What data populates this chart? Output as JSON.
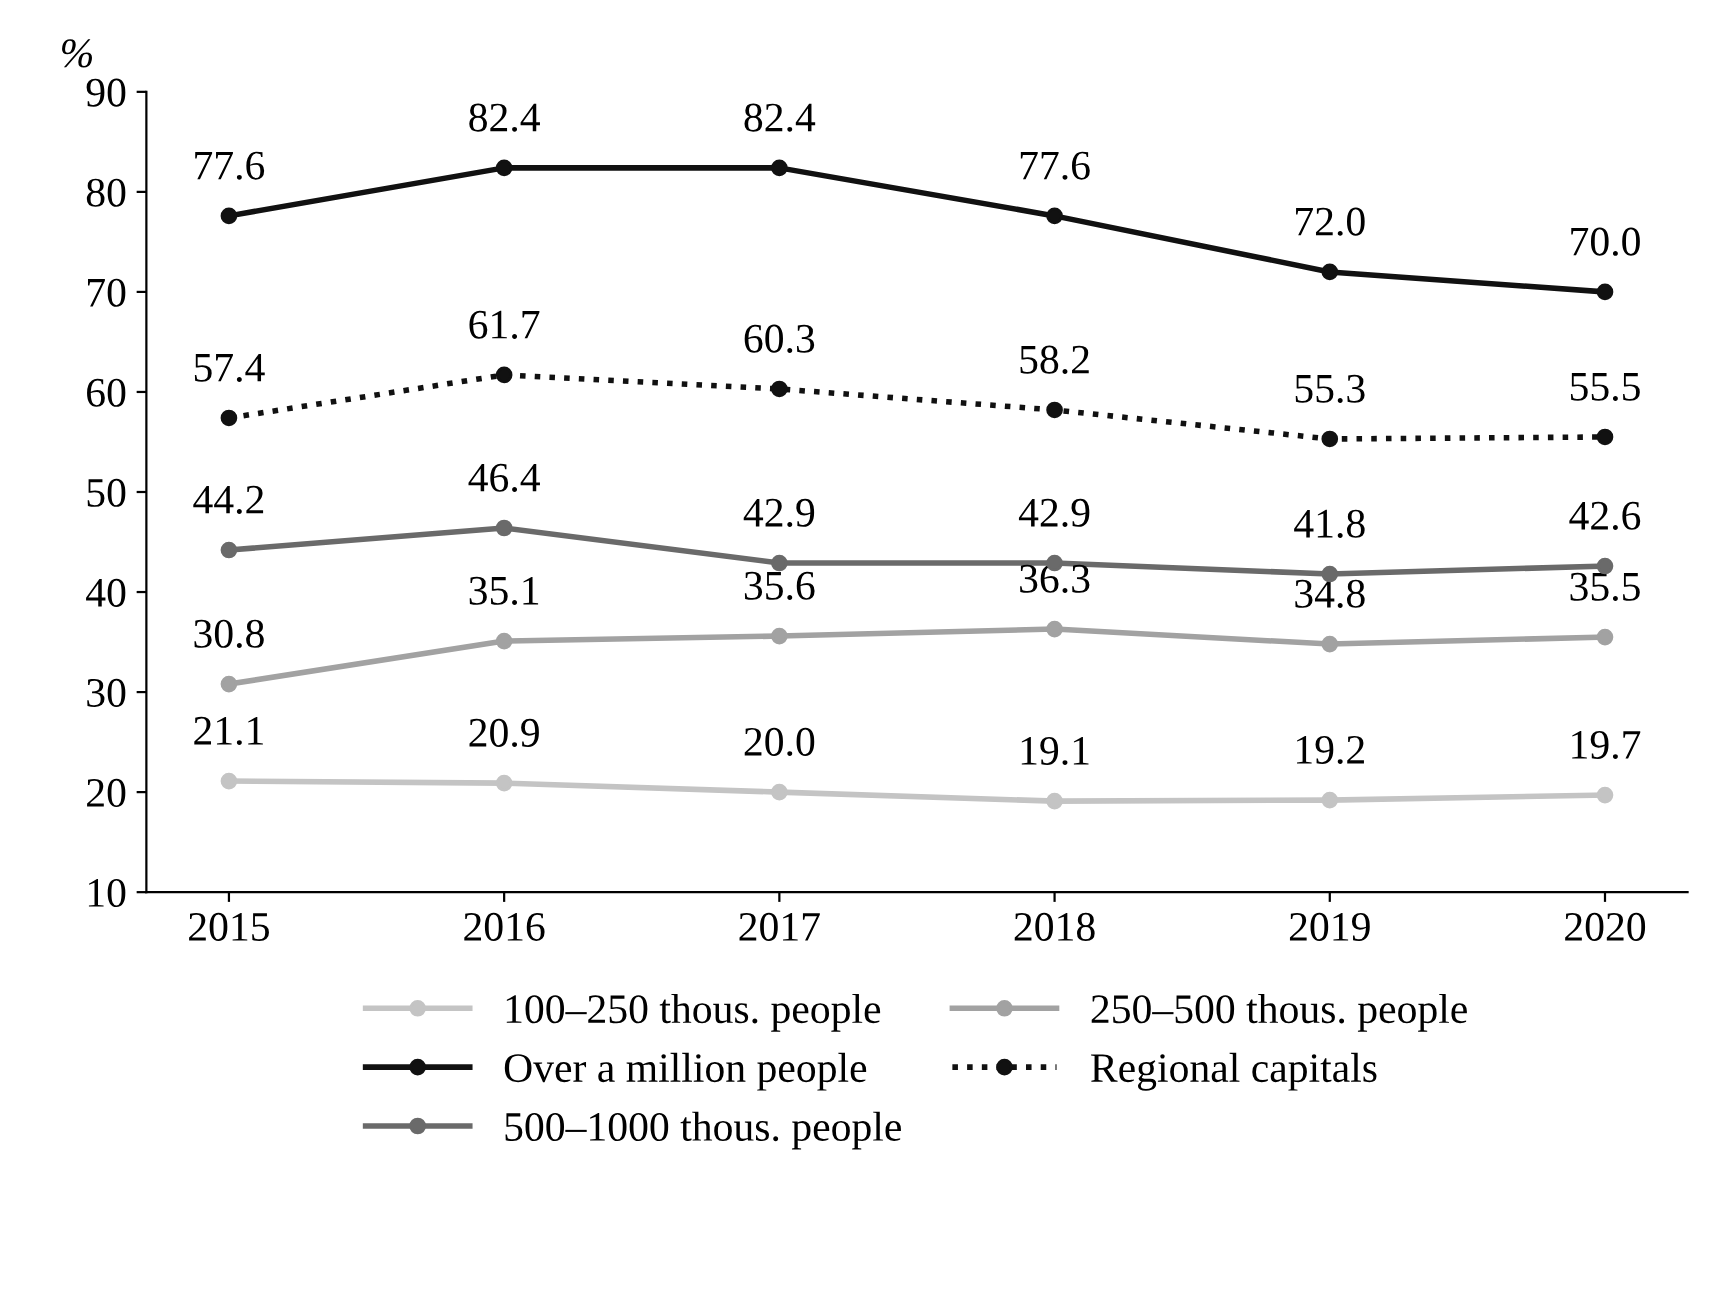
{
  "chart_data": {
    "type": "line",
    "ylabel": "%",
    "categories": [
      "2015",
      "2016",
      "2017",
      "2018",
      "2019",
      "2020"
    ],
    "series": [
      {
        "name": "100–250 thous. people",
        "color": "#c4c4c4",
        "values": [
          21.1,
          20.9,
          20.0,
          19.1,
          19.2,
          19.7
        ],
        "value_labels": [
          "21.1",
          "20.9",
          "20.0",
          "19.1",
          "19.2",
          "19.7"
        ]
      },
      {
        "name": "250–500 thous. people",
        "color": "#a2a2a2",
        "values": [
          30.8,
          35.1,
          35.6,
          36.3,
          34.8,
          35.5
        ],
        "value_labels": [
          "30.8",
          "35.1",
          "35.6",
          "36.3",
          "34.8",
          "35.5"
        ]
      },
      {
        "name": "Over a million people",
        "color": "#111111",
        "values": [
          77.6,
          82.4,
          82.4,
          77.6,
          72.0,
          70.0
        ],
        "value_labels": [
          "77.6",
          "82.4",
          "82.4",
          "77.6",
          "72.0",
          "70.0"
        ]
      },
      {
        "name": "Regional capitals",
        "color": "#111111",
        "line_style": "dotted",
        "values": [
          57.4,
          61.7,
          60.3,
          58.2,
          55.3,
          55.5
        ],
        "value_labels": [
          "57.4",
          "61.7",
          "60.3",
          "58.2",
          "55.3",
          "55.5"
        ]
      },
      {
        "name": "500–1000 thous. people",
        "color": "#6a6a6a",
        "values": [
          44.2,
          46.4,
          42.9,
          42.9,
          41.8,
          42.6
        ],
        "value_labels": [
          "44.2",
          "46.4",
          "42.9",
          "42.9",
          "41.8",
          "42.6"
        ]
      }
    ],
    "ylim": [
      10,
      90
    ],
    "yticks": [
      10,
      20,
      30,
      40,
      50,
      60,
      70,
      80,
      90
    ],
    "marker": "circle",
    "line_style": "solid",
    "grid": false,
    "legend": "bottom"
  }
}
